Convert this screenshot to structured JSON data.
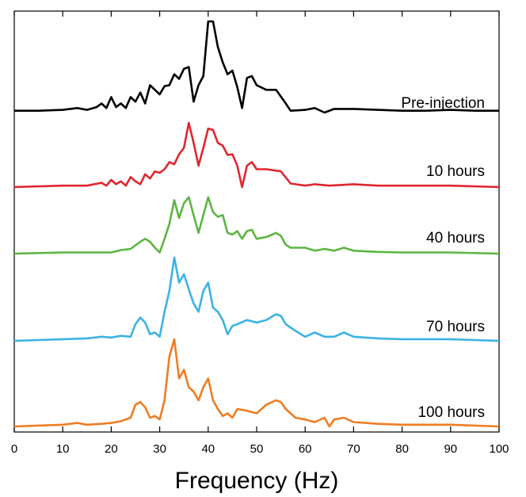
{
  "chart_data": {
    "type": "line",
    "layout": "stacked-offset",
    "xlabel": "Frequency (Hz)",
    "ylabel": "",
    "xlim": [
      0,
      100
    ],
    "xticks": [
      0,
      10,
      20,
      30,
      40,
      50,
      60,
      70,
      80,
      90,
      100
    ],
    "grid": false,
    "series": [
      {
        "name": "Pre-injection",
        "color": "#000000",
        "points": [
          [
            0,
            0.02
          ],
          [
            5,
            0.02
          ],
          [
            10,
            0.03
          ],
          [
            13,
            0.05
          ],
          [
            15,
            0.03
          ],
          [
            17,
            0.06
          ],
          [
            18,
            0.1
          ],
          [
            19,
            0.05
          ],
          [
            20,
            0.17
          ],
          [
            21,
            0.06
          ],
          [
            22,
            0.1
          ],
          [
            23,
            0.05
          ],
          [
            24,
            0.17
          ],
          [
            25,
            0.12
          ],
          [
            26,
            0.22
          ],
          [
            27,
            0.1
          ],
          [
            28,
            0.3
          ],
          [
            29,
            0.25
          ],
          [
            30,
            0.2
          ],
          [
            31,
            0.29
          ],
          [
            32,
            0.3
          ],
          [
            33,
            0.42
          ],
          [
            34,
            0.37
          ],
          [
            35,
            0.48
          ],
          [
            36,
            0.5
          ],
          [
            37,
            0.12
          ],
          [
            38,
            0.3
          ],
          [
            39,
            0.4
          ],
          [
            40,
            1.0
          ],
          [
            41,
            1.0
          ],
          [
            42,
            0.72
          ],
          [
            43,
            0.55
          ],
          [
            44,
            0.42
          ],
          [
            45,
            0.46
          ],
          [
            46,
            0.28
          ],
          [
            47,
            0.05
          ],
          [
            48,
            0.38
          ],
          [
            49,
            0.4
          ],
          [
            50,
            0.3
          ],
          [
            52,
            0.25
          ],
          [
            54,
            0.25
          ],
          [
            56,
            0.1
          ],
          [
            57,
            0.02
          ],
          [
            60,
            0.03
          ],
          [
            62,
            0.05
          ],
          [
            64,
            0.0
          ],
          [
            66,
            0.04
          ],
          [
            70,
            0.04
          ],
          [
            75,
            0.03
          ],
          [
            80,
            0.02
          ],
          [
            85,
            0.02
          ],
          [
            90,
            0.03
          ],
          [
            95,
            0.02
          ],
          [
            100,
            0.02
          ]
        ]
      },
      {
        "name": "10 hours",
        "color": "#e0262e",
        "points": [
          [
            0,
            0.0
          ],
          [
            10,
            0.02
          ],
          [
            15,
            0.02
          ],
          [
            18,
            0.06
          ],
          [
            19,
            0.02
          ],
          [
            20,
            0.1
          ],
          [
            21,
            0.04
          ],
          [
            22,
            0.08
          ],
          [
            23,
            0.02
          ],
          [
            24,
            0.14
          ],
          [
            25,
            0.08
          ],
          [
            26,
            0.04
          ],
          [
            27,
            0.18
          ],
          [
            28,
            0.12
          ],
          [
            29,
            0.22
          ],
          [
            30,
            0.2
          ],
          [
            31,
            0.25
          ],
          [
            32,
            0.35
          ],
          [
            33,
            0.32
          ],
          [
            34,
            0.46
          ],
          [
            35,
            0.55
          ],
          [
            36,
            0.9
          ],
          [
            37,
            0.62
          ],
          [
            38,
            0.3
          ],
          [
            39,
            0.55
          ],
          [
            40,
            0.82
          ],
          [
            41,
            0.8
          ],
          [
            42,
            0.62
          ],
          [
            43,
            0.58
          ],
          [
            44,
            0.45
          ],
          [
            45,
            0.46
          ],
          [
            46,
            0.3
          ],
          [
            47,
            0.0
          ],
          [
            48,
            0.3
          ],
          [
            49,
            0.35
          ],
          [
            50,
            0.25
          ],
          [
            52,
            0.25
          ],
          [
            55,
            0.22
          ],
          [
            57,
            0.05
          ],
          [
            60,
            0.02
          ],
          [
            62,
            0.04
          ],
          [
            65,
            0.02
          ],
          [
            70,
            0.04
          ],
          [
            75,
            0.02
          ],
          [
            80,
            0.02
          ],
          [
            90,
            0.02
          ],
          [
            100,
            0.0
          ]
        ]
      },
      {
        "name": "40 hours",
        "color": "#5cb542",
        "points": [
          [
            0,
            0.0
          ],
          [
            10,
            0.02
          ],
          [
            15,
            0.02
          ],
          [
            20,
            0.02
          ],
          [
            22,
            0.06
          ],
          [
            24,
            0.08
          ],
          [
            26,
            0.2
          ],
          [
            27,
            0.25
          ],
          [
            28,
            0.2
          ],
          [
            29,
            0.1
          ],
          [
            30,
            0.02
          ],
          [
            31,
            0.25
          ],
          [
            32,
            0.5
          ],
          [
            33,
            0.9
          ],
          [
            34,
            0.6
          ],
          [
            35,
            0.85
          ],
          [
            36,
            0.95
          ],
          [
            37,
            0.65
          ],
          [
            38,
            0.35
          ],
          [
            39,
            0.65
          ],
          [
            40,
            0.95
          ],
          [
            41,
            0.7
          ],
          [
            42,
            0.62
          ],
          [
            43,
            0.65
          ],
          [
            44,
            0.35
          ],
          [
            45,
            0.32
          ],
          [
            46,
            0.38
          ],
          [
            47,
            0.25
          ],
          [
            48,
            0.38
          ],
          [
            49,
            0.4
          ],
          [
            50,
            0.25
          ],
          [
            52,
            0.28
          ],
          [
            54,
            0.35
          ],
          [
            55,
            0.3
          ],
          [
            56,
            0.15
          ],
          [
            57,
            0.1
          ],
          [
            60,
            0.1
          ],
          [
            62,
            0.05
          ],
          [
            64,
            0.08
          ],
          [
            66,
            0.05
          ],
          [
            68,
            0.1
          ],
          [
            70,
            0.05
          ],
          [
            75,
            0.03
          ],
          [
            80,
            0.02
          ],
          [
            90,
            0.02
          ],
          [
            100,
            0.0
          ]
        ]
      },
      {
        "name": "70 hours",
        "color": "#3bb3e4",
        "points": [
          [
            0,
            0.0
          ],
          [
            10,
            0.02
          ],
          [
            15,
            0.03
          ],
          [
            18,
            0.05
          ],
          [
            20,
            0.04
          ],
          [
            22,
            0.06
          ],
          [
            24,
            0.05
          ],
          [
            25,
            0.2
          ],
          [
            26,
            0.28
          ],
          [
            27,
            0.22
          ],
          [
            28,
            0.08
          ],
          [
            29,
            0.1
          ],
          [
            30,
            0.05
          ],
          [
            31,
            0.35
          ],
          [
            32,
            0.6
          ],
          [
            33,
            1.0
          ],
          [
            34,
            0.7
          ],
          [
            35,
            0.8
          ],
          [
            36,
            0.62
          ],
          [
            37,
            0.45
          ],
          [
            38,
            0.35
          ],
          [
            39,
            0.6
          ],
          [
            40,
            0.7
          ],
          [
            41,
            0.4
          ],
          [
            42,
            0.35
          ],
          [
            43,
            0.25
          ],
          [
            44,
            0.08
          ],
          [
            45,
            0.18
          ],
          [
            46,
            0.2
          ],
          [
            48,
            0.25
          ],
          [
            50,
            0.22
          ],
          [
            52,
            0.25
          ],
          [
            54,
            0.32
          ],
          [
            55,
            0.3
          ],
          [
            56,
            0.2
          ],
          [
            58,
            0.12
          ],
          [
            60,
            0.05
          ],
          [
            62,
            0.1
          ],
          [
            64,
            0.05
          ],
          [
            66,
            0.05
          ],
          [
            68,
            0.1
          ],
          [
            70,
            0.05
          ],
          [
            75,
            0.03
          ],
          [
            80,
            0.02
          ],
          [
            90,
            0.02
          ],
          [
            100,
            0.0
          ]
        ]
      },
      {
        "name": "100 hours",
        "color": "#ef7d22",
        "points": [
          [
            0,
            0.0
          ],
          [
            10,
            0.02
          ],
          [
            13,
            0.04
          ],
          [
            15,
            0.02
          ],
          [
            18,
            0.03
          ],
          [
            20,
            0.04
          ],
          [
            22,
            0.06
          ],
          [
            24,
            0.1
          ],
          [
            25,
            0.25
          ],
          [
            26,
            0.28
          ],
          [
            27,
            0.22
          ],
          [
            28,
            0.1
          ],
          [
            29,
            0.12
          ],
          [
            30,
            0.08
          ],
          [
            31,
            0.3
          ],
          [
            32,
            0.8
          ],
          [
            33,
            1.0
          ],
          [
            34,
            0.55
          ],
          [
            35,
            0.65
          ],
          [
            36,
            0.45
          ],
          [
            37,
            0.4
          ],
          [
            38,
            0.3
          ],
          [
            39,
            0.45
          ],
          [
            40,
            0.55
          ],
          [
            41,
            0.3
          ],
          [
            42,
            0.2
          ],
          [
            43,
            0.12
          ],
          [
            44,
            0.15
          ],
          [
            45,
            0.1
          ],
          [
            46,
            0.2
          ],
          [
            48,
            0.18
          ],
          [
            50,
            0.15
          ],
          [
            52,
            0.25
          ],
          [
            54,
            0.3
          ],
          [
            55,
            0.28
          ],
          [
            56,
            0.2
          ],
          [
            58,
            0.1
          ],
          [
            60,
            0.08
          ],
          [
            62,
            0.05
          ],
          [
            64,
            0.1
          ],
          [
            65,
            0.0
          ],
          [
            66,
            0.08
          ],
          [
            68,
            0.1
          ],
          [
            70,
            0.05
          ],
          [
            75,
            0.03
          ],
          [
            80,
            0.02
          ],
          [
            90,
            0.02
          ],
          [
            100,
            0.0
          ]
        ]
      }
    ]
  }
}
